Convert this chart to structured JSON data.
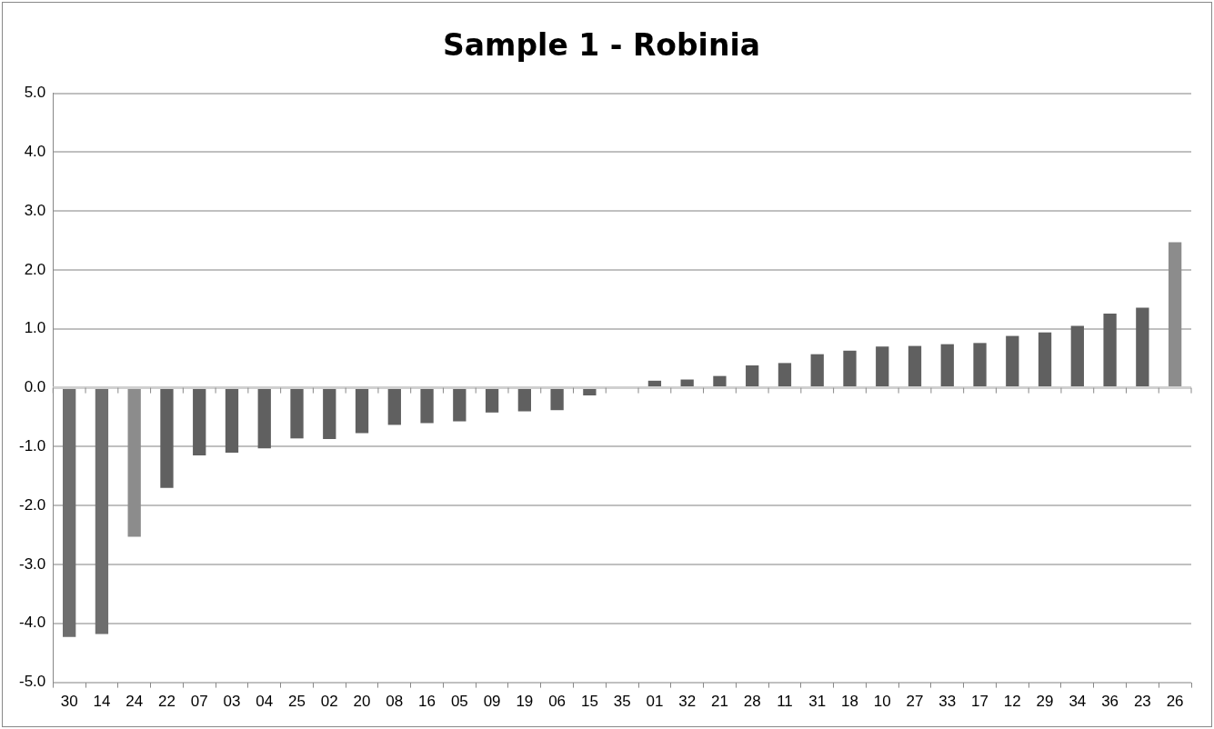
{
  "chart_data": {
    "type": "bar",
    "title": "Sample 1 - Robinia",
    "categories": [
      "30",
      "14",
      "24",
      "22",
      "07",
      "03",
      "04",
      "25",
      "02",
      "20",
      "08",
      "16",
      "05",
      "09",
      "19",
      "06",
      "15",
      "35",
      "01",
      "32",
      "21",
      "28",
      "11",
      "31",
      "18",
      "10",
      "27",
      "33",
      "17",
      "12",
      "29",
      "34",
      "36",
      "23",
      "26"
    ],
    "values": [
      -4.23,
      -4.18,
      -2.53,
      -1.7,
      -1.15,
      -1.1,
      -1.03,
      -0.86,
      -0.87,
      -0.77,
      -0.63,
      -0.6,
      -0.57,
      -0.42,
      -0.4,
      -0.38,
      -0.13,
      0,
      0.12,
      0.14,
      0.2,
      0.38,
      0.42,
      0.57,
      0.63,
      0.7,
      0.71,
      0.74,
      0.76,
      0.88,
      0.94,
      1.05,
      1.26,
      1.36,
      2.47
    ],
    "colors": [
      "#6e6e6e",
      "#6e6e6e",
      "#8c8c8c",
      "#606060",
      "#606060",
      "#606060",
      "#606060",
      "#606060",
      "#606060",
      "#606060",
      "#606060",
      "#606060",
      "#606060",
      "#606060",
      "#606060",
      "#606060",
      "#606060",
      "#606060",
      "#606060",
      "#606060",
      "#606060",
      "#606060",
      "#606060",
      "#606060",
      "#606060",
      "#606060",
      "#606060",
      "#606060",
      "#606060",
      "#606060",
      "#606060",
      "#606060",
      "#606060",
      "#606060",
      "#8c8c8c"
    ],
    "ylim": [
      -5,
      5
    ],
    "yticks": [
      {
        "value": -5,
        "label": "-5.0"
      },
      {
        "value": -4,
        "label": "-4.0"
      },
      {
        "value": -3,
        "label": "-3.0"
      },
      {
        "value": -2,
        "label": "-2.0"
      },
      {
        "value": -1,
        "label": "-1.0"
      },
      {
        "value": 0,
        "label": "0.0"
      },
      {
        "value": 1,
        "label": "1.0"
      },
      {
        "value": 2,
        "label": "2.0"
      },
      {
        "value": 3,
        "label": "3.0"
      },
      {
        "value": 4,
        "label": "4.0"
      },
      {
        "value": 5,
        "label": "5.0"
      }
    ],
    "grid": "y"
  }
}
